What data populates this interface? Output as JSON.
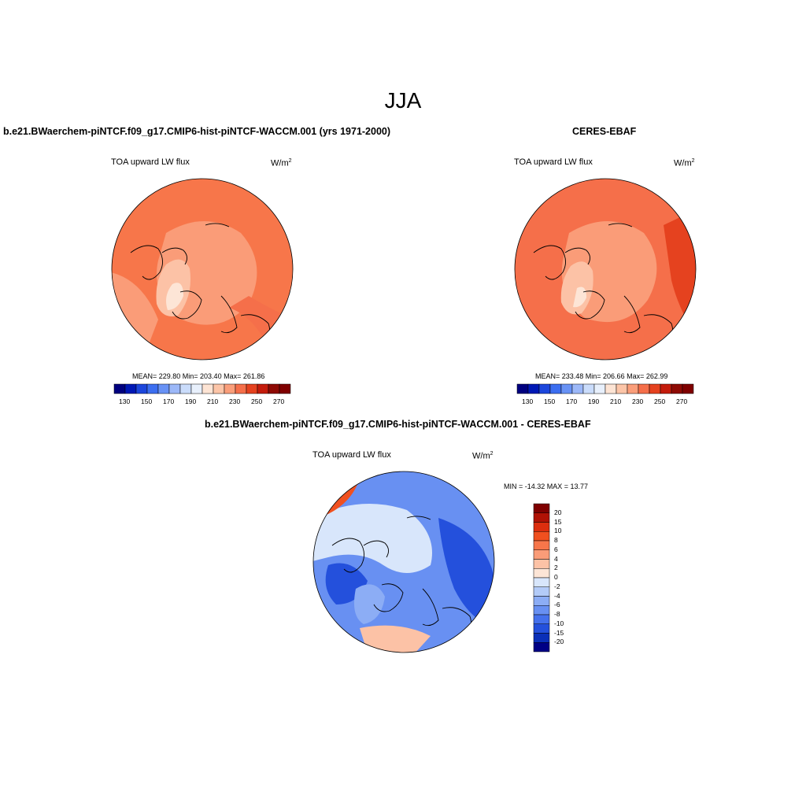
{
  "title": "JJA",
  "panels": [
    {
      "id": "model",
      "title": "b.e21.BWaerchem-piNTCF.f09_g17.CMIP6-hist-piNTCF-WACCM.001 (yrs 1971-2000)",
      "variable": "TOA upward LW flux",
      "units_base": "W/m",
      "units_exp": "2",
      "stats": "MEAN= 229.80  Min= 203.40  Max= 261.86",
      "colorbar": {
        "levels": [
          130,
          140,
          150,
          160,
          170,
          180,
          190,
          200,
          210,
          220,
          230,
          240,
          250,
          260,
          270
        ],
        "tick_labels": [
          "130",
          "150",
          "170",
          "190",
          "210",
          "230",
          "250",
          "270"
        ],
        "colors": [
          "#00007f",
          "#0018b5",
          "#1c46dc",
          "#3c6ef0",
          "#6892f5",
          "#9cb8f8",
          "#cadcfb",
          "#e8f0fc",
          "#fde4d4",
          "#fcc5a8",
          "#fa9e7a",
          "#f56f4a",
          "#e5421f",
          "#c41c0c",
          "#8e0a04",
          "#7f0000"
        ]
      }
    },
    {
      "id": "obs",
      "title": "CERES-EBAF",
      "variable": "TOA upward LW flux",
      "units_base": "W/m",
      "units_exp": "2",
      "stats": "MEAN= 233.48  Min= 206.66  Max= 262.99",
      "colorbar": {
        "levels": [
          130,
          140,
          150,
          160,
          170,
          180,
          190,
          200,
          210,
          220,
          230,
          240,
          250,
          260,
          270
        ],
        "tick_labels": [
          "130",
          "150",
          "170",
          "190",
          "210",
          "230",
          "250",
          "270"
        ],
        "colors": [
          "#00007f",
          "#0018b5",
          "#1c46dc",
          "#3c6ef0",
          "#6892f5",
          "#9cb8f8",
          "#cadcfb",
          "#e8f0fc",
          "#fde4d4",
          "#fcc5a8",
          "#fa9e7a",
          "#f56f4a",
          "#e5421f",
          "#c41c0c",
          "#8e0a04",
          "#7f0000"
        ]
      }
    },
    {
      "id": "diff",
      "title": "b.e21.BWaerchem-piNTCF.f09_g17.CMIP6-hist-piNTCF-WACCM.001 - CERES-EBAF",
      "variable": "TOA upward LW flux",
      "units_base": "W/m",
      "units_exp": "2",
      "stats": "MIN = -14.32 MAX =  13.77",
      "colorbar": {
        "tick_labels": [
          "20",
          "15",
          "10",
          "8",
          "6",
          "4",
          "2",
          "0",
          "-2",
          "-4",
          "-6",
          "-8",
          "-10",
          "-15",
          "-20"
        ],
        "colors": [
          "#7f0000",
          "#b01205",
          "#dc2e0e",
          "#f0501f",
          "#f7764a",
          "#fa9c78",
          "#fcc2a6",
          "#fde5d6",
          "#d8e6fb",
          "#b3cbf8",
          "#8cadf5",
          "#6890f2",
          "#4470ec",
          "#2450dc",
          "#0a2fb8",
          "#000085"
        ]
      }
    }
  ],
  "map_colors": {
    "model_base": "#f7764a",
    "model_mid": "#fa9c78",
    "model_light": "#fcc2a6",
    "model_pale": "#fde5d6",
    "obs_base": "#f56f4a",
    "obs_dark": "#e5421f",
    "diff_blue": "#6890f2",
    "diff_darkblue": "#2450dc",
    "diff_light": "#d8e6fb",
    "diff_red": "#f0501f",
    "diff_pink": "#fcc2a6",
    "coast": "#000000"
  }
}
